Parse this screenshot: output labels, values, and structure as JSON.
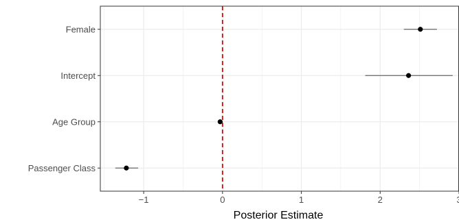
{
  "chart_data": {
    "type": "scatter",
    "subtype": "interval-dot",
    "title": "",
    "xlabel": "Posterior Estimate",
    "ylabel": "",
    "xlim": [
      -1.55,
      3.0
    ],
    "x_ticks": [
      -1,
      0,
      1,
      2,
      3
    ],
    "x_tick_labels": [
      "−1",
      "0",
      "1",
      "2",
      "3"
    ],
    "categories": [
      "Female",
      "Intercept",
      "Age Group",
      "Passenger Class"
    ],
    "points": [
      {
        "label": "Female",
        "estimate": 2.51,
        "lower": 2.3,
        "upper": 2.72
      },
      {
        "label": "Intercept",
        "estimate": 2.36,
        "lower": 1.81,
        "upper": 2.92
      },
      {
        "label": "Age Group",
        "estimate": -0.03,
        "lower": -0.06,
        "upper": 0.0
      },
      {
        "label": "Passenger Class",
        "estimate": -1.22,
        "lower": -1.36,
        "upper": -1.07
      }
    ],
    "reference_line": {
      "x": 0,
      "color": "#e00000",
      "style": "dashed"
    },
    "grid": true,
    "legend": "none",
    "colors": {
      "point": "#000000",
      "interval": "#666666",
      "grid": "#ebebeb",
      "panel_border": "#333333"
    }
  }
}
